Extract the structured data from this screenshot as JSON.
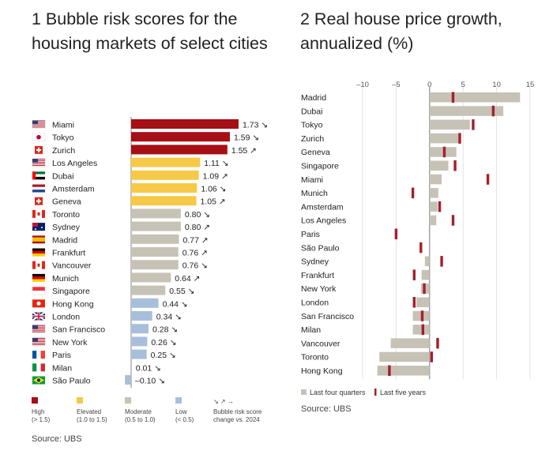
{
  "chart1_title": "1 Bubble risk scores for the housing markets of select cities",
  "chart2_title": "2 Real house price growth, annualized (%)",
  "source1": "Source: UBS",
  "source2": "Source: UBS",
  "colors": {
    "high": "#a50f15",
    "elevated": "#f7c948",
    "moderate": "#c7c2b6",
    "low": "#a8bfdc",
    "last_four_quarters": "#c7c2b6",
    "last_five_years": "#a3202a"
  },
  "legend1": [
    {
      "key": "high",
      "label": "High",
      "range": "(> 1.5)"
    },
    {
      "key": "elevated",
      "label": "Elevated",
      "range": "(1.0 to 1.5)"
    },
    {
      "key": "moderate",
      "label": "Moderate",
      "range": "(0.5 to 1.0)"
    },
    {
      "key": "low",
      "label": "Low",
      "range": "(< 0.5)"
    },
    {
      "key": "arrows",
      "label": "Bubble risk score",
      "range": "change vs. 2024",
      "arrows": "↘ ↗ →"
    }
  ],
  "legend2": [
    "Last four quarters",
    "Last five years"
  ],
  "chart_data": [
    {
      "type": "bar",
      "orientation": "horizontal",
      "title": "1 Bubble risk scores for the housing markets of select cities",
      "categories": [
        "Miami",
        "Tokyo",
        "Zurich",
        "Los Angeles",
        "Dubai",
        "Amsterdam",
        "Geneva",
        "Toronto",
        "Sydney",
        "Madrid",
        "Frankfurt",
        "Vancouver",
        "Munich",
        "Singapore",
        "Hong Kong",
        "London",
        "San Francisco",
        "New York",
        "Paris",
        "Milan",
        "São Paulo"
      ],
      "values": [
        1.73,
        1.59,
        1.55,
        1.11,
        1.09,
        1.06,
        1.05,
        0.8,
        0.8,
        0.77,
        0.76,
        0.76,
        0.64,
        0.55,
        0.44,
        0.34,
        0.28,
        0.26,
        0.25,
        0.01,
        -0.1
      ],
      "labels": [
        "1.73",
        "1.59",
        "1.55",
        "1.11",
        "1.09",
        "1.06",
        "1.05",
        "0.80",
        "0.80",
        "0.77",
        "0.76",
        "0.76",
        "0.64",
        "0.55",
        "0.44",
        "0.34",
        "0.28",
        "0.26",
        "0.25",
        "0.01",
        "–0.10"
      ],
      "risk": [
        "high",
        "high",
        "high",
        "elevated",
        "elevated",
        "elevated",
        "elevated",
        "moderate",
        "moderate",
        "moderate",
        "moderate",
        "moderate",
        "moderate",
        "moderate",
        "low",
        "low",
        "low",
        "low",
        "low",
        "low",
        "low"
      ],
      "change": [
        "↘",
        "↘",
        "↗",
        "↘",
        "↗",
        "↘",
        "↗",
        "↘",
        "↗",
        "↗",
        "↗",
        "↘",
        "↗",
        "↘",
        "↘",
        "↘",
        "↘",
        "↘",
        "↘",
        "↘",
        "↘"
      ],
      "flags": [
        "us",
        "jp",
        "ch",
        "us",
        "ae",
        "nl",
        "ch",
        "ca",
        "au",
        "es",
        "de",
        "ca",
        "de",
        "sg",
        "hk",
        "gb",
        "us",
        "us",
        "fr",
        "it",
        "br"
      ],
      "xlim": [
        -0.15,
        1.9
      ]
    },
    {
      "type": "bar",
      "orientation": "horizontal",
      "title": "2 Real house price growth, annualized (%)",
      "categories": [
        "Madrid",
        "Dubai",
        "Tokyo",
        "Zurich",
        "Geneva",
        "Singapore",
        "Miami",
        "Munich",
        "Amsterdam",
        "Los Angeles",
        "Paris",
        "São Paulo",
        "Sydney",
        "Frankfurt",
        "New York",
        "London",
        "San Francisco",
        "Milan",
        "Vancouver",
        "Toronto",
        "Hong Kong"
      ],
      "series": [
        {
          "name": "Last four quarters",
          "values": [
            13.5,
            11.0,
            6.0,
            4.5,
            4.0,
            2.8,
            1.8,
            1.3,
            1.2,
            1.0,
            0.0,
            0.0,
            -0.7,
            -1.2,
            -1.3,
            -2.0,
            -2.5,
            -2.5,
            -5.8,
            -7.5,
            -7.8
          ]
        },
        {
          "name": "Last five years",
          "values": [
            3.5,
            9.5,
            6.5,
            4.5,
            2.2,
            3.8,
            8.7,
            -2.5,
            1.5,
            3.5,
            -5.0,
            -1.3,
            1.8,
            -2.3,
            -0.8,
            -2.3,
            -1.1,
            -1.0,
            1.2,
            0.3,
            -6.0
          ]
        }
      ],
      "xticks": [
        "–10",
        "–5",
        "0",
        "5",
        "10",
        "15"
      ],
      "xlim": [
        -10,
        15
      ]
    }
  ]
}
